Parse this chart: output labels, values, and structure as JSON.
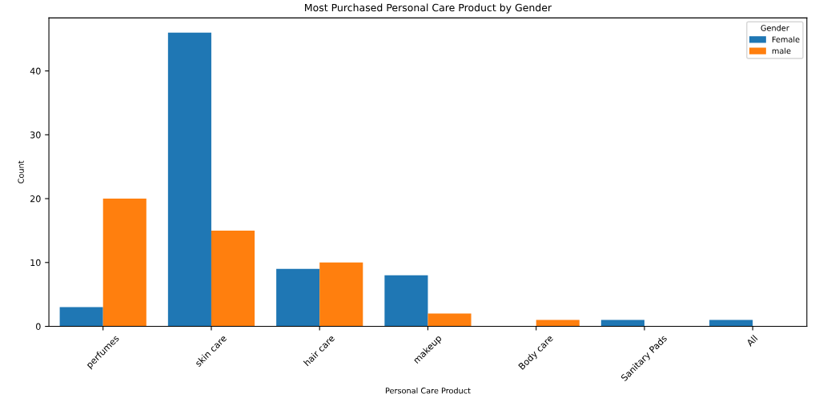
{
  "chart_data": {
    "type": "bar",
    "title": "Most Purchased Personal Care Product by Gender",
    "xlabel": "Personal Care Product",
    "ylabel": "Count",
    "legend_title": "Gender",
    "categories": [
      "perfumes",
      "skin care",
      "hair care",
      "makeup",
      "Body care",
      "Sanitary Pads",
      "All"
    ],
    "series": [
      {
        "name": "Female",
        "color": "#1f77b4",
        "values": [
          3,
          46,
          9,
          8,
          null,
          1,
          1
        ]
      },
      {
        "name": "male",
        "color": "#ff7f0e",
        "values": [
          20,
          15,
          10,
          2,
          1,
          null,
          null
        ]
      }
    ],
    "ylim": [
      0,
      48.3
    ],
    "yticks": [
      0,
      10,
      20,
      30,
      40
    ],
    "grid": false,
    "legend": "top right"
  }
}
